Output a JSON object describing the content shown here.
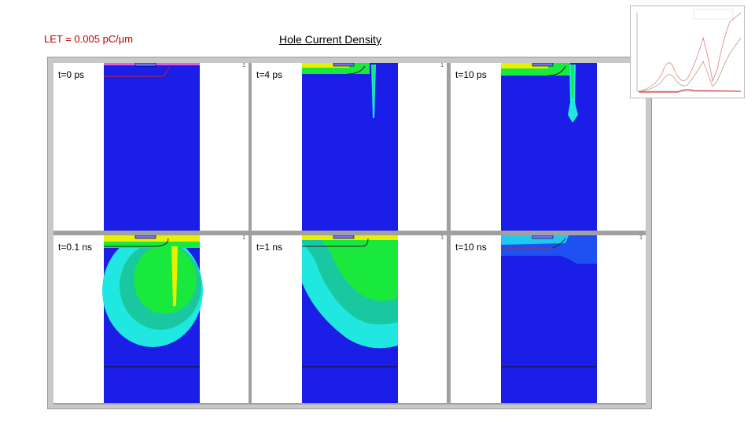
{
  "header": {
    "let_label": "LET = 0.005 pC/µm",
    "title": "Hole Current Density"
  },
  "panels": [
    {
      "label": "t=0 ps"
    },
    {
      "label": "t=4 ps"
    },
    {
      "label": "t=10 ps"
    },
    {
      "label": "t=0.1 ns"
    },
    {
      "label": "t=1 ns"
    },
    {
      "label": "t=10 ns"
    }
  ],
  "colors": {
    "background_blue": "#1a1ee6",
    "green": "#19e83c",
    "cyan": "#20e8e0",
    "yellow": "#e8f000",
    "contour_red": "#cc2020",
    "label_red": "#c00000"
  },
  "inset": {
    "type": "line-plot-thumbnail",
    "series_count": 3
  }
}
